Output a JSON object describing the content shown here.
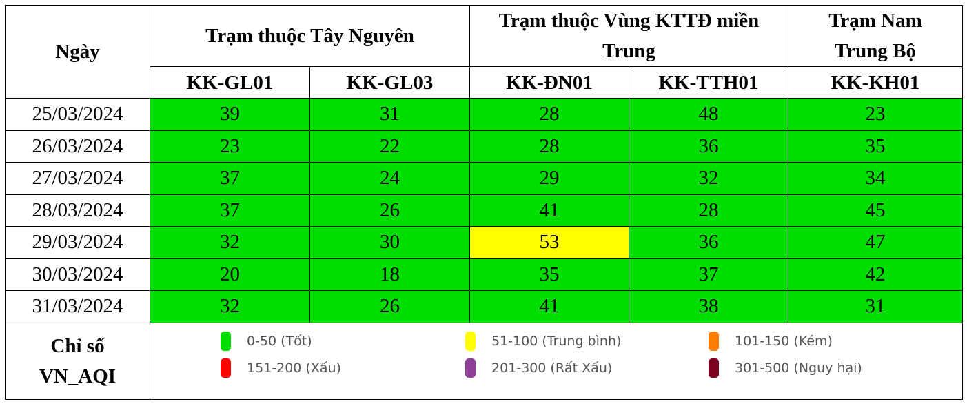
{
  "header": {
    "date_label": "Ngày",
    "groups": [
      {
        "label": "Trạm thuộc Tây Nguyên",
        "span": 2
      },
      {
        "label": "Trạm thuộc Vùng KTTĐ miền Trung",
        "span": 2
      },
      {
        "label": "Trạm Nam Trung Bộ",
        "span": 1
      }
    ],
    "stations": [
      "KK-GL01",
      "KK-GL03",
      "KK-ĐN01",
      "KK-TTH01",
      "KK-KH01"
    ]
  },
  "rows": [
    {
      "date": "25/03/2024",
      "values": [
        "39",
        "31",
        "28",
        "48",
        "23"
      ]
    },
    {
      "date": "26/03/2024",
      "values": [
        "23",
        "22",
        "28",
        "36",
        "35"
      ]
    },
    {
      "date": "27/03/2024",
      "values": [
        "37",
        "24",
        "29",
        "32",
        "34"
      ]
    },
    {
      "date": "28/03/2024",
      "values": [
        "37",
        "26",
        "41",
        "28",
        "45"
      ]
    },
    {
      "date": "29/03/2024",
      "values": [
        "32",
        "30",
        "53",
        "36",
        "47"
      ]
    },
    {
      "date": "30/03/2024",
      "values": [
        "20",
        "18",
        "35",
        "37",
        "42"
      ]
    },
    {
      "date": "31/03/2024",
      "values": [
        "32",
        "26",
        "41",
        "38",
        "31"
      ]
    }
  ],
  "legend": {
    "title_line1": "Chỉ số",
    "title_line2": "VN_AQI",
    "items": [
      {
        "label": "0-50 (Tốt)",
        "color": "#00dd00",
        "max": 50
      },
      {
        "label": "51-100 (Trung bình)",
        "color": "#ffff00",
        "max": 100
      },
      {
        "label": "101-150 (Kém)",
        "color": "#ff7e00",
        "max": 150
      },
      {
        "label": "151-200 (Xấu)",
        "color": "#ff0000",
        "max": 200
      },
      {
        "label": "201-300 (Rất Xấu)",
        "color": "#8f3f97",
        "max": 300
      },
      {
        "label": "301-500 (Nguy hại)",
        "color": "#7e0023",
        "max": 500
      }
    ]
  }
}
